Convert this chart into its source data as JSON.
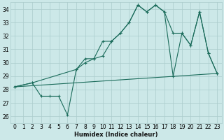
{
  "xlabel": "Humidex (Indice chaleur)",
  "bg_color": "#cce8e8",
  "grid_color": "#aacccc",
  "line_color": "#1a6b5a",
  "xlim": [
    -0.5,
    23.5
  ],
  "ylim": [
    25.5,
    34.5
  ],
  "yticks": [
    26,
    27,
    28,
    29,
    30,
    31,
    32,
    33,
    34
  ],
  "xticks": [
    0,
    1,
    2,
    3,
    4,
    5,
    6,
    7,
    8,
    9,
    10,
    11,
    12,
    13,
    14,
    15,
    16,
    17,
    18,
    19,
    20,
    21,
    22,
    23
  ],
  "line1": {
    "x": [
      0,
      2,
      3,
      4,
      5,
      6,
      7,
      8,
      9,
      10,
      11,
      12,
      13,
      14,
      15,
      16,
      17,
      18,
      19,
      20,
      21,
      22,
      23
    ],
    "y": [
      28.2,
      28.5,
      27.5,
      27.5,
      27.5,
      26.1,
      29.5,
      30.3,
      30.3,
      31.6,
      31.6,
      32.2,
      33.0,
      34.3,
      33.8,
      34.3,
      33.8,
      29.0,
      32.2,
      31.3,
      33.8,
      30.7,
      29.2
    ]
  },
  "line2": {
    "x": [
      0,
      2,
      7,
      8,
      9,
      10,
      11,
      12,
      13,
      14,
      15,
      16,
      17,
      18,
      19,
      20,
      21,
      22,
      23
    ],
    "y": [
      28.2,
      28.5,
      29.5,
      30.0,
      30.3,
      30.5,
      31.6,
      32.2,
      33.0,
      34.3,
      33.8,
      34.3,
      33.8,
      32.2,
      32.2,
      31.3,
      33.8,
      30.7,
      29.2
    ]
  },
  "line3": {
    "x": [
      0,
      23
    ],
    "y": [
      28.2,
      29.2
    ]
  }
}
